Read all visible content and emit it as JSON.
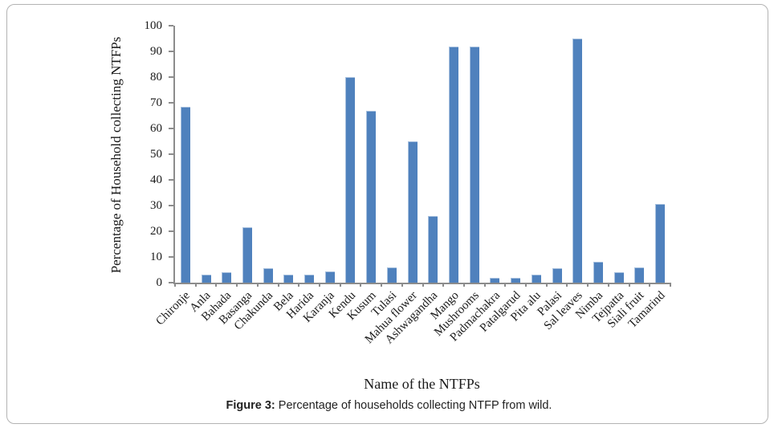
{
  "figure": {
    "caption_label": "Figure 3:",
    "caption_text": "Percentage of households collecting NTFP from wild."
  },
  "chart_data": {
    "type": "bar",
    "title": "",
    "xlabel": "Name of the NTFPs",
    "ylabel": "Percentage of Household collecting NTFPs",
    "ylim": [
      0,
      100
    ],
    "ytick_step": 10,
    "yticks": [
      0,
      10,
      20,
      30,
      40,
      50,
      60,
      70,
      80,
      90,
      100
    ],
    "grid": false,
    "legend": false,
    "bar_color": "#4F81BD",
    "axis_color": "#8C8C8C",
    "categories": [
      "Chironje",
      "Anla",
      "Bahada",
      "Basanga",
      "Chakunda",
      "Bela",
      "Harida",
      "Karanja",
      "Kendu",
      "Kusum",
      "Tulasi",
      "Mahua flower",
      "Ashwagandha",
      "Mango",
      "Mushrooms",
      "Padmachakra",
      "Patalgarud",
      "Pita alu",
      "Palasi",
      "Sal leaves",
      "Nimba",
      "Tejpatta",
      "Siali fruit",
      "Tamarind"
    ],
    "values": [
      68.5,
      3,
      4,
      21.5,
      5.5,
      3,
      3,
      4.5,
      80,
      67,
      6,
      55,
      26,
      92,
      92,
      2,
      2,
      3,
      5.5,
      95,
      8,
      4,
      6,
      30.5
    ]
  }
}
